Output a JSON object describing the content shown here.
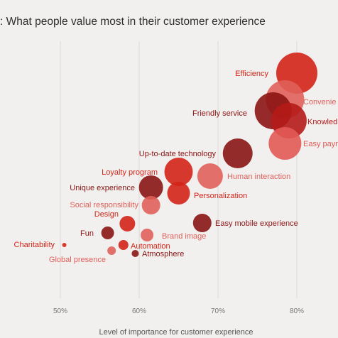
{
  "chart_data": {
    "type": "scatter",
    "title": ": What people value most in their customer experience",
    "xlabel": "Level of importance for customer experience",
    "ylabel": "",
    "xlim": [
      0.43,
      0.84
    ],
    "xticks": [
      {
        "value": 0.5,
        "label": "50%"
      },
      {
        "value": 0.6,
        "label": "60%"
      },
      {
        "value": 0.7,
        "label": "70%"
      },
      {
        "value": 0.8,
        "label": "80%"
      }
    ],
    "grid": true,
    "points": [
      {
        "name": "Efficiency",
        "x": 0.8,
        "size": 0.9,
        "color": "#d42418",
        "label_side": "left"
      },
      {
        "name": "Convenience",
        "display": "Convenie",
        "x": 0.785,
        "size": 0.85,
        "color": "#e0605a",
        "label_side": "right"
      },
      {
        "name": "Friendly service",
        "x": 0.77,
        "size": 0.8,
        "color": "#8c1414",
        "label_side": "left"
      },
      {
        "name": "Knowledge",
        "display": "Knowled",
        "x": 0.79,
        "size": 0.8,
        "color": "#b51b18",
        "label_side": "right"
      },
      {
        "name": "Easy payment",
        "display": "Easy payn",
        "x": 0.785,
        "size": 0.72,
        "color": "#e25a55",
        "label_side": "right"
      },
      {
        "name": "Up-to-date technology",
        "x": 0.725,
        "size": 0.65,
        "color": "#8a1515",
        "label_side": "left"
      },
      {
        "name": "Loyalty program",
        "x": 0.65,
        "size": 0.62,
        "color": "#d42418",
        "label_side": "left"
      },
      {
        "name": "Human interaction",
        "x": 0.69,
        "size": 0.58,
        "color": "#e0605a",
        "label_side": "right"
      },
      {
        "name": "Unique experience",
        "x": 0.615,
        "size": 0.56,
        "color": "#8a1515",
        "label_side": "left"
      },
      {
        "name": "Personalization",
        "x": 0.65,
        "size": 0.5,
        "color": "#d42418",
        "label_side": "right"
      },
      {
        "name": "Social responsibility",
        "x": 0.615,
        "size": 0.44,
        "color": "#e0605a",
        "label_side": "left"
      },
      {
        "name": "Design",
        "x": 0.585,
        "size": 0.36,
        "color": "#d42418",
        "label_side": "left"
      },
      {
        "name": "Easy mobile experience",
        "x": 0.68,
        "size": 0.44,
        "color": "#8a1515",
        "label_side": "right"
      },
      {
        "name": "Fun",
        "x": 0.56,
        "size": 0.3,
        "color": "#8a1515",
        "label_side": "left"
      },
      {
        "name": "Brand image",
        "x": 0.61,
        "size": 0.3,
        "color": "#e0605a",
        "label_side": "right"
      },
      {
        "name": "Charitability",
        "x": 0.505,
        "size": 0.1,
        "color": "#d42418",
        "label_side": "left"
      },
      {
        "name": "Automation",
        "x": 0.58,
        "size": 0.22,
        "color": "#d42418",
        "label_side": "right"
      },
      {
        "name": "Global presence",
        "x": 0.565,
        "size": 0.18,
        "color": "#e0605a",
        "label_side": "left"
      },
      {
        "name": "Atmosphere",
        "x": 0.595,
        "size": 0.16,
        "color": "#8a1515",
        "label_side": "right"
      }
    ]
  }
}
